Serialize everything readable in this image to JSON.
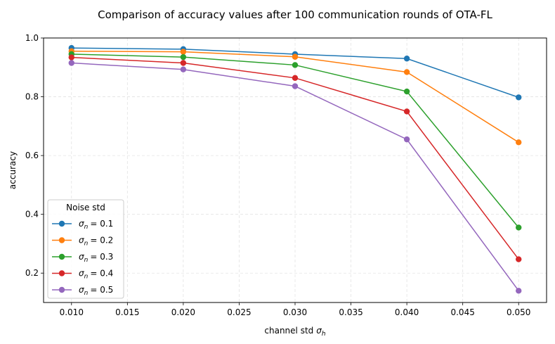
{
  "chart_data": {
    "type": "line",
    "title": "Comparison of accuracy values after 100 communication rounds of OTA-FL",
    "xlabel": "channel std",
    "xlabel_symbol": "σ",
    "xlabel_symbol_sub": "h",
    "ylabel": "accuracy",
    "xlim": [
      0.0075,
      0.0525
    ],
    "ylim": [
      0.1,
      1.0
    ],
    "x_ticks": [
      "0.010",
      "0.015",
      "0.020",
      "0.025",
      "0.030",
      "0.035",
      "0.040",
      "0.045",
      "0.050"
    ],
    "y_ticks": [
      "0.2",
      "0.4",
      "0.6",
      "0.8",
      "1.0"
    ],
    "grid": true,
    "legend_title": "Noise std",
    "legend_position": "lower-left",
    "x": [
      0.01,
      0.02,
      0.03,
      0.04,
      0.05
    ],
    "series": [
      {
        "name": "σn = 0.1",
        "label_symbol": "σ",
        "label_sub": "n",
        "label_value": "= 0.1",
        "color": "#1f77b4",
        "values": [
          0.966,
          0.962,
          0.945,
          0.93,
          0.798
        ]
      },
      {
        "name": "σn = 0.2",
        "label_symbol": "σ",
        "label_sub": "n",
        "label_value": "= 0.2",
        "color": "#ff7f0e",
        "values": [
          0.955,
          0.953,
          0.936,
          0.884,
          0.645
        ]
      },
      {
        "name": "σn = 0.3",
        "label_symbol": "σ",
        "label_sub": "n",
        "label_value": "= 0.3",
        "color": "#2ca02c",
        "values": [
          0.945,
          0.935,
          0.908,
          0.818,
          0.355
        ]
      },
      {
        "name": "σn = 0.4",
        "label_symbol": "σ",
        "label_sub": "n",
        "label_value": "= 0.4",
        "color": "#d62728",
        "values": [
          0.934,
          0.915,
          0.864,
          0.75,
          0.247
        ]
      },
      {
        "name": "σn = 0.5",
        "label_symbol": "σ",
        "label_sub": "n",
        "label_value": "= 0.5",
        "color": "#9467bd",
        "values": [
          0.915,
          0.893,
          0.836,
          0.655,
          0.14
        ]
      }
    ]
  }
}
